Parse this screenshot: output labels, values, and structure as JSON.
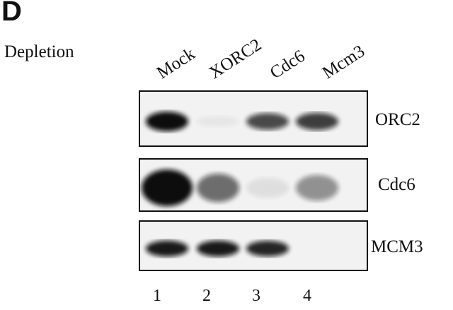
{
  "panel_letter": "D",
  "condition_label": "Depletion",
  "lanes": [
    {
      "number": "1",
      "label": "Mock"
    },
    {
      "number": "2",
      "label": "XORC2"
    },
    {
      "number": "3",
      "label": "Cdc6"
    },
    {
      "number": "4",
      "label": "Mcm3"
    }
  ],
  "blots": [
    {
      "label": "ORC2",
      "band_intensity": [
        1.0,
        0.05,
        0.7,
        0.75
      ]
    },
    {
      "label": "Cdc6",
      "band_intensity": [
        1.0,
        0.55,
        0.08,
        0.4
      ]
    },
    {
      "label": "MCM3",
      "band_intensity": [
        0.9,
        0.9,
        0.85,
        0.0
      ]
    }
  ]
}
